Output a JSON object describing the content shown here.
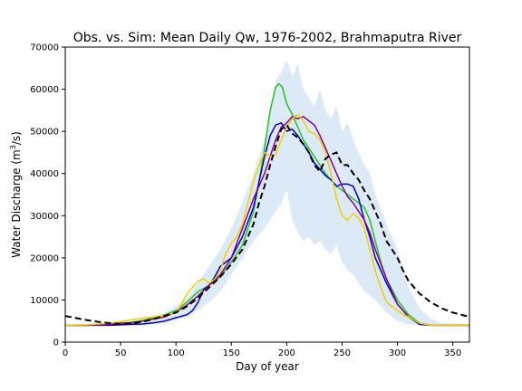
{
  "chart_data": {
    "type": "line",
    "title": "Obs. vs. Sim: Mean Daily Qw, 1976-2002, Brahmaputra River",
    "xlabel": "Day of year",
    "ylabel_main": "Water Discharge (m",
    "ylabel_sup": "3",
    "ylabel_tail": "/s)",
    "xlim": [
      0,
      365
    ],
    "ylim": [
      0,
      70000
    ],
    "xticks": [
      0,
      50,
      100,
      150,
      200,
      250,
      300,
      350
    ],
    "yticks": [
      0,
      10000,
      20000,
      30000,
      40000,
      50000,
      60000,
      70000
    ],
    "grid": false,
    "legend": "none",
    "band": {
      "color": "#dce9f6",
      "x": [
        0,
        40,
        60,
        80,
        90,
        100,
        110,
        120,
        130,
        140,
        150,
        160,
        170,
        180,
        185,
        190,
        195,
        200,
        205,
        210,
        215,
        220,
        225,
        230,
        235,
        240,
        245,
        250,
        255,
        260,
        265,
        270,
        275,
        280,
        290,
        300,
        310,
        320,
        330,
        340,
        365
      ],
      "upper": [
        4200,
        4600,
        5000,
        6000,
        7000,
        8500,
        10500,
        14000,
        18000,
        22000,
        27000,
        33000,
        40000,
        48000,
        54000,
        62000,
        64000,
        67000,
        63000,
        66000,
        60000,
        58000,
        56000,
        60000,
        55000,
        53000,
        56000,
        50000,
        52000,
        48000,
        45000,
        42000,
        40000,
        35000,
        28000,
        22000,
        13000,
        8000,
        5500,
        4500,
        4300
      ],
      "lower": [
        3800,
        3900,
        4000,
        4300,
        4600,
        5200,
        6000,
        7500,
        9500,
        12000,
        16000,
        20000,
        24000,
        27000,
        29000,
        31000,
        33000,
        36000,
        29000,
        26000,
        24000,
        25000,
        23000,
        24000,
        22000,
        21000,
        23000,
        19000,
        17000,
        16000,
        14000,
        12000,
        11000,
        10000,
        7000,
        5000,
        4200,
        4000,
        3900,
        3900,
        3900
      ]
    },
    "series": [
      {
        "color": "#000000",
        "dashed": true,
        "x": [
          0,
          10,
          20,
          30,
          40,
          50,
          60,
          70,
          80,
          90,
          100,
          110,
          120,
          130,
          140,
          150,
          160,
          170,
          175,
          180,
          185,
          190,
          195,
          200,
          205,
          210,
          215,
          220,
          225,
          230,
          235,
          240,
          245,
          250,
          255,
          260,
          265,
          270,
          275,
          280,
          285,
          290,
          295,
          300,
          305,
          310,
          320,
          330,
          340,
          350,
          365
        ],
        "y": [
          6200,
          5700,
          5200,
          4800,
          4500,
          4300,
          4500,
          4800,
          5500,
          6300,
          7000,
          8500,
          10500,
          13000,
          15500,
          18500,
          22000,
          28000,
          33000,
          37000,
          42000,
          46500,
          50500,
          51500,
          49500,
          48500,
          47000,
          45000,
          42000,
          40500,
          43500,
          44500,
          45000,
          42000,
          42000,
          40000,
          38500,
          36000,
          34000,
          31000,
          28000,
          24000,
          22000,
          20000,
          17000,
          14500,
          11500,
          9500,
          8000,
          7000,
          6000
        ]
      },
      {
        "color": "#1ec81e",
        "dashed": false,
        "x": [
          0,
          20,
          40,
          50,
          60,
          70,
          80,
          90,
          100,
          110,
          120,
          130,
          140,
          150,
          160,
          170,
          175,
          180,
          185,
          190,
          193,
          196,
          200,
          205,
          210,
          215,
          220,
          225,
          230,
          235,
          240,
          245,
          250,
          255,
          260,
          265,
          270,
          275,
          280,
          285,
          290,
          300,
          310,
          320,
          330,
          340,
          365
        ],
        "y": [
          4000,
          4000,
          4100,
          4300,
          4700,
          5100,
          5800,
          6500,
          7500,
          9500,
          12000,
          13500,
          15500,
          19000,
          23000,
          31000,
          38000,
          46000,
          55000,
          60500,
          61300,
          60500,
          56500,
          54000,
          51000,
          48000,
          46000,
          44000,
          42000,
          40000,
          38500,
          37000,
          36000,
          35000,
          34000,
          33000,
          32000,
          29000,
          24000,
          19000,
          15000,
          10000,
          6500,
          4500,
          4000,
          4000,
          4000
        ]
      },
      {
        "color": "#0000cc",
        "dashed": false,
        "x": [
          0,
          20,
          40,
          50,
          60,
          70,
          80,
          90,
          100,
          110,
          115,
          120,
          125,
          130,
          135,
          140,
          150,
          160,
          170,
          175,
          180,
          185,
          190,
          195,
          200,
          205,
          210,
          215,
          220,
          225,
          230,
          235,
          240,
          245,
          250,
          255,
          260,
          265,
          270,
          275,
          280,
          290,
          300,
          310,
          320,
          330,
          340,
          365
        ],
        "y": [
          4000,
          4000,
          4000,
          4100,
          4200,
          4300,
          4600,
          5000,
          5800,
          6500,
          7500,
          9500,
          12500,
          13500,
          15500,
          18000,
          20000,
          25000,
          32000,
          38000,
          44000,
          49000,
          51500,
          52000,
          50000,
          50500,
          49000,
          47000,
          45000,
          42500,
          41000,
          39500,
          38500,
          37000,
          37500,
          37500,
          37000,
          34000,
          29000,
          25000,
          20000,
          14000,
          9000,
          6000,
          4200,
          4000,
          4000,
          4000
        ]
      },
      {
        "color": "#8b008b",
        "dashed": false,
        "x": [
          0,
          20,
          40,
          50,
          60,
          70,
          80,
          90,
          100,
          110,
          120,
          130,
          140,
          150,
          160,
          170,
          180,
          190,
          195,
          200,
          205,
          210,
          215,
          220,
          225,
          230,
          235,
          240,
          245,
          250,
          255,
          260,
          265,
          270,
          275,
          280,
          290,
          300,
          310,
          320,
          330,
          340,
          365
        ],
        "y": [
          4000,
          4000,
          4200,
          4500,
          4600,
          5000,
          5500,
          6000,
          7200,
          8800,
          11000,
          13500,
          16000,
          20000,
          27000,
          34000,
          40000,
          48000,
          51000,
          52000,
          53500,
          53000,
          53500,
          52500,
          51500,
          49000,
          46000,
          43000,
          40000,
          37000,
          34500,
          33000,
          31000,
          29000,
          26000,
          22000,
          15000,
          9000,
          6000,
          4500,
          4000,
          4000,
          4000
        ]
      },
      {
        "color": "#f0d000",
        "dashed": false,
        "x": [
          0,
          20,
          40,
          50,
          60,
          70,
          80,
          90,
          100,
          105,
          110,
          115,
          120,
          125,
          130,
          135,
          140,
          145,
          150,
          155,
          160,
          165,
          170,
          175,
          180,
          185,
          190,
          195,
          200,
          205,
          210,
          215,
          220,
          225,
          230,
          235,
          240,
          245,
          250,
          255,
          260,
          265,
          270,
          275,
          280,
          285,
          290,
          300,
          305,
          310,
          320,
          330,
          340,
          365
        ],
        "y": [
          4000,
          4100,
          4500,
          4900,
          5300,
          5700,
          6000,
          6500,
          7000,
          9000,
          11500,
          13000,
          14500,
          15000,
          14000,
          15000,
          17000,
          21000,
          23500,
          25000,
          28000,
          33000,
          38000,
          42000,
          45000,
          44000,
          44500,
          48000,
          51000,
          53000,
          54000,
          52500,
          50000,
          49500,
          48000,
          45000,
          40000,
          34000,
          30000,
          29000,
          30500,
          29500,
          27000,
          22000,
          17000,
          13000,
          9500,
          7500,
          6500,
          6000,
          4500,
          4000,
          4000,
          4000
        ]
      }
    ]
  }
}
